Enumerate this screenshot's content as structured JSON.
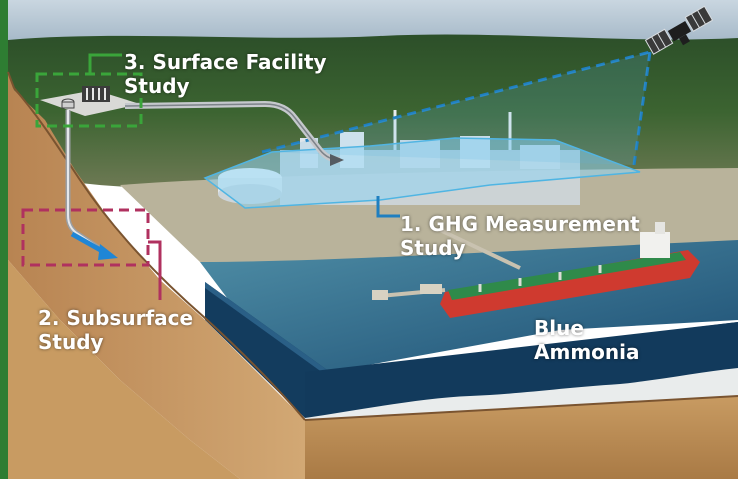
{
  "labels": {
    "surface_line1": "3. Surface Facility",
    "surface_line2": "Study",
    "ghg_line1": "1. GHG Measurement",
    "ghg_line2": "Study",
    "subsurface_line1": "2. Subsurface",
    "subsurface_line2": "Study",
    "ammonia_line1": "Blue",
    "ammonia_line2": "Ammonia"
  },
  "icons": [
    "satellite-icon",
    "storage-tank-icon",
    "ship-icon",
    "pipeline-icon",
    "plant-icon"
  ],
  "colors": {
    "left_border": "#2e7d32",
    "surface_box": "#3aa53a",
    "subsurface_box": "#b0315f",
    "ghg_outline": "#1f7fc0",
    "ghg_fill": "#8fd3f2",
    "soil": "#c79a63",
    "soil_dark": "#9b6f3f",
    "sea": "#123a5c",
    "vegetation": "#2f5a2a",
    "sky": "#9fb3c4",
    "wellbore_arrow": "#1f86d6",
    "ship_hull": "#cf3a2f",
    "ship_deck": "#2f8a4a"
  }
}
